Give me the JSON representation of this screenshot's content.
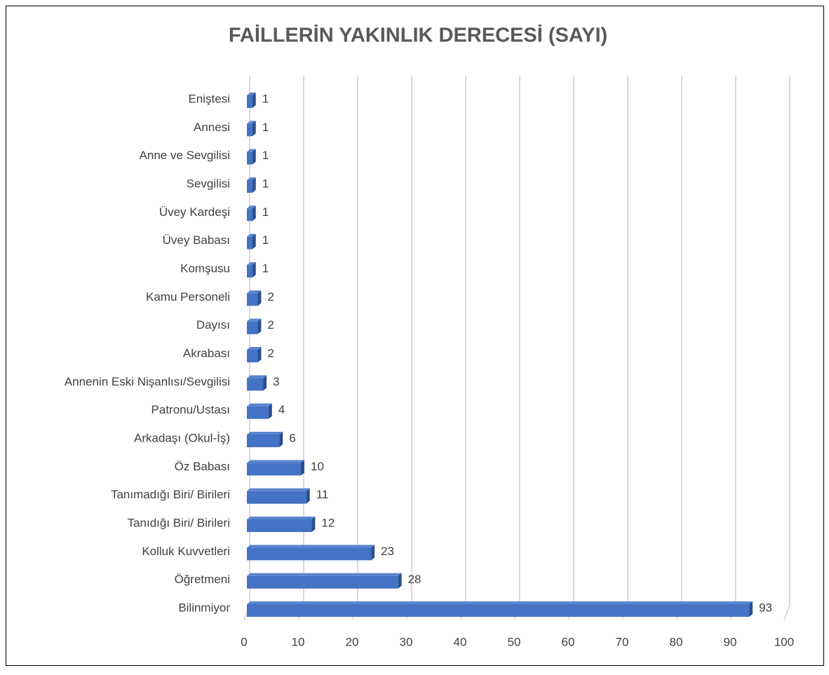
{
  "chart_data": {
    "type": "bar",
    "orientation": "horizontal",
    "title": "FAİLLERİN YAKINLIK DERECESİ (SAYI)",
    "categories": [
      "Eniştesi",
      "Annesi",
      "Anne ve Sevgilisi",
      "Sevgilisi",
      "Üvey Kardeşi",
      "Üvey Babası",
      "Komşusu",
      "Kamu Personeli",
      "Dayısı",
      "Akrabası",
      "Annenin Eski Nişanlısı/Sevgilisi",
      "Patronu/Ustası",
      "Arkadaşı (Okul-İş)",
      "Öz Babası",
      "Tanımadığı Biri/ Birileri",
      "Tanıdığı Biri/ Birileri",
      "Kolluk Kuvvetleri",
      "Öğretmeni",
      "Bilinmiyor"
    ],
    "values": [
      1,
      1,
      1,
      1,
      1,
      1,
      1,
      2,
      2,
      2,
      3,
      4,
      6,
      10,
      11,
      12,
      23,
      28,
      93
    ],
    "color": "#4472c4",
    "xlim": [
      0,
      100
    ],
    "xticks": [
      0,
      10,
      20,
      30,
      40,
      50,
      60,
      70,
      80,
      90,
      100
    ],
    "grid": true
  }
}
